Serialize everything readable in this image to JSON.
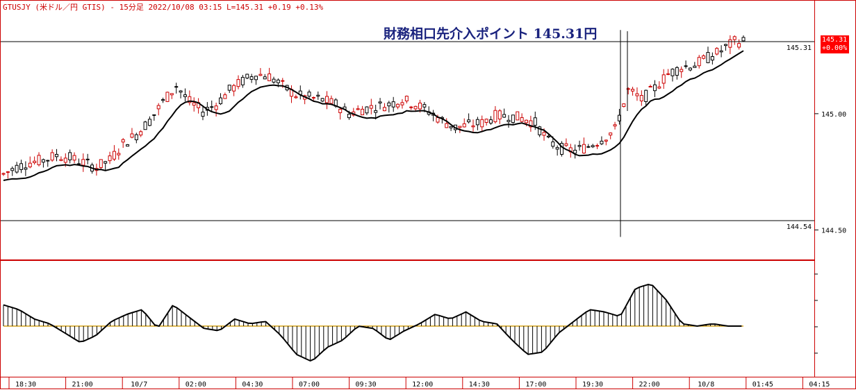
{
  "header": {
    "title": "GTUSJY (米ドル／円 GTIS) - 15分足 2022/10/08 03:15 L=145.31 +0.19 +0.13%"
  },
  "annotation": {
    "text": "財務相口先介入ポイント 145.31円"
  },
  "price_badge": {
    "price": "145.31",
    "change": "+0.00%"
  },
  "colors": {
    "frame": "#cc0000",
    "up_candle": "#cc0000",
    "down_candle": "#000000",
    "moving_average": "#000000",
    "oscillator_zero": "#d4a017",
    "annotation": "#1a237e"
  },
  "chart_data": {
    "type": "candlestick",
    "y_axis_ticks": [
      "145.00",
      "144.50"
    ],
    "ylim": [
      144.4,
      145.45
    ],
    "horizontal_lines": [
      {
        "value": 145.31,
        "label": "145.31"
      },
      {
        "value": 144.54,
        "label": "144.54"
      }
    ],
    "x_tick_labels": [
      "18:30",
      "21:00",
      "10/7",
      "02:00",
      "04:30",
      "07:00",
      "09:30",
      "12:00",
      "14:30",
      "17:00",
      "19:30",
      "22:00",
      "10/8",
      "01:45",
      "04:15"
    ],
    "close_series_approx": [
      144.74,
      144.77,
      144.79,
      144.8,
      144.82,
      144.81,
      144.79,
      144.77,
      144.8,
      144.87,
      144.91,
      144.97,
      145.05,
      145.12,
      145.05,
      145.01,
      145.04,
      145.1,
      145.14,
      145.17,
      145.16,
      145.12,
      145.08,
      145.07,
      145.06,
      145.04,
      145.0,
      145.02,
      145.03,
      145.04,
      145.06,
      145.04,
      145.01,
      144.97,
      144.94,
      144.95,
      144.96,
      144.99,
      144.99,
      144.98,
      144.96,
      144.88,
      144.85,
      144.84,
      144.86,
      144.89,
      144.93,
      145.1,
      145.06,
      145.11,
      145.17,
      145.2,
      145.21,
      145.24,
      145.27,
      145.31
    ],
    "oscillator": {
      "zero_label": "",
      "values_approx": [
        0.9,
        0.7,
        0.3,
        0.1,
        -0.3,
        -0.7,
        -0.4,
        0.2,
        0.5,
        0.7,
        -0.1,
        0.9,
        0.4,
        -0.1,
        -0.2,
        0.3,
        0.1,
        0.2,
        -0.4,
        -1.2,
        -1.5,
        -0.9,
        -0.6,
        0.0,
        -0.1,
        -0.6,
        -0.2,
        0.1,
        0.5,
        0.3,
        0.6,
        0.2,
        0.1,
        -0.6,
        -1.2,
        -1.1,
        -0.3,
        0.2,
        0.7,
        0.6,
        0.4,
        1.6,
        1.8,
        1.1,
        0.1,
        0.0,
        0.1,
        0.0,
        0.0
      ]
    }
  }
}
